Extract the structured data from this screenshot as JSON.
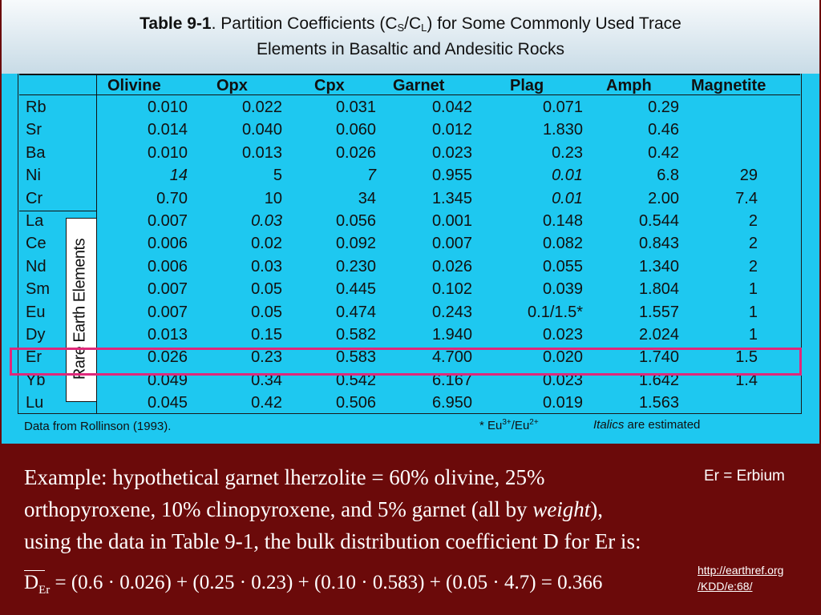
{
  "slide": {
    "title": {
      "label": "Table 9-1",
      "text_before": ". Partition Coefficients (C",
      "sub_s": "S",
      "mid": "/C",
      "sub_l": "L",
      "text_after": ") for Some Commonly Used Trace",
      "line2": "Elements in Basaltic and Andesitic Rocks"
    },
    "colors": {
      "table_bg": "#1ec8f0",
      "title_bg": "#e4eef4",
      "slide_bg": "#6b0a0a",
      "highlight": "#e0287a"
    },
    "table": {
      "headers": [
        "Olivine",
        "Opx",
        "Cpx",
        "Garnet",
        "Plag",
        "Amph",
        "Magnetite"
      ],
      "rows": [
        {
          "el": "Rb",
          "vals": [
            "0.010",
            "0.022",
            "0.031",
            "0.042",
            "0.071",
            "0.29",
            ""
          ]
        },
        {
          "el": "Sr",
          "vals": [
            "0.014",
            "0.040",
            "0.060",
            "0.012",
            "1.830",
            "0.46",
            ""
          ]
        },
        {
          "el": "Ba",
          "vals": [
            "0.010",
            "0.013",
            "0.026",
            "0.023",
            "0.23",
            "0.42",
            ""
          ]
        },
        {
          "el": "Ni",
          "vals": [
            "14",
            "5",
            "7",
            "0.955",
            "0.01",
            "6.8",
            "29"
          ]
        },
        {
          "el": "Cr",
          "vals": [
            "0.70",
            "10",
            "34",
            "1.345",
            "0.01",
            "2.00",
            "7.4"
          ]
        },
        {
          "el": "La",
          "vals": [
            "0.007",
            "0.03",
            "0.056",
            "0.001",
            "0.148",
            "0.544",
            "2"
          ]
        },
        {
          "el": "Ce",
          "vals": [
            "0.006",
            "0.02",
            "0.092",
            "0.007",
            "0.082",
            "0.843",
            "2"
          ]
        },
        {
          "el": "Nd",
          "vals": [
            "0.006",
            "0.03",
            "0.230",
            "0.026",
            "0.055",
            "1.340",
            "2"
          ]
        },
        {
          "el": "Sm",
          "vals": [
            "0.007",
            "0.05",
            "0.445",
            "0.102",
            "0.039",
            "1.804",
            "1"
          ]
        },
        {
          "el": "Eu",
          "vals": [
            "0.007",
            "0.05",
            "0.474",
            "0.243",
            "0.1/1.5*",
            "1.557",
            "1"
          ]
        },
        {
          "el": "Dy",
          "vals": [
            "0.013",
            "0.15",
            "0.582",
            "1.940",
            "0.023",
            "2.024",
            "1"
          ]
        },
        {
          "el": "Er",
          "vals": [
            "0.026",
            "0.23",
            "0.583",
            "4.700",
            "0.020",
            "1.740",
            "1.5"
          ]
        },
        {
          "el": "Yb",
          "vals": [
            "0.049",
            "0.34",
            "0.542",
            "6.167",
            "0.023",
            "1.642",
            "1.4"
          ]
        },
        {
          "el": "Lu",
          "vals": [
            "0.045",
            "0.42",
            "0.506",
            "6.950",
            "0.019",
            "1.563",
            ""
          ]
        }
      ],
      "rare_earth_label": "Rare Earth Elements",
      "footer_source": "Data from Rollinson (1993).",
      "footer_eu": {
        "prefix": "* Eu",
        "sup1": "3+",
        "mid": "/Eu",
        "sup2": "2+"
      },
      "footer_italics_word": "Italics",
      "footer_italics_rest": " are estimated"
    },
    "example": {
      "line1": "Example: hypothetical garnet lherzolite = 60% olivine, 25%",
      "line2_a": "orthopyroxene, 10% clinopyroxene, and 5% garnet (all by ",
      "line2_italic": "weight",
      "line2_b": "),",
      "line3": "using the data in Table 9-1, the bulk distribution coefficient D for Er is:",
      "er_note": "Er = Erbium",
      "formula_d": "D",
      "formula_sub": "Er",
      "formula_rest": " = (0.6 · 0.026) + (0.25 · 0.23) + (0.10 · 0.583) + (0.05 · 4.7) = 0.366"
    },
    "link": {
      "line1": "http://earthref.org",
      "line2": "/KDD/e:68/"
    }
  }
}
